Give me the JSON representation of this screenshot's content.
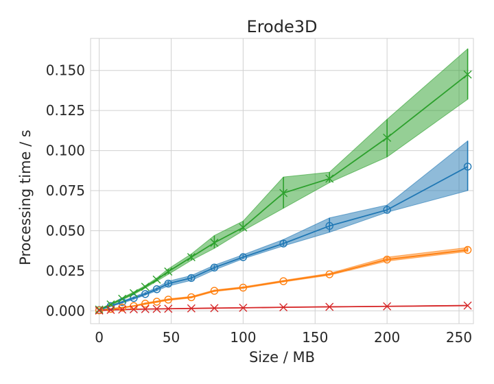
{
  "chart_data": {
    "type": "line",
    "title": "Erode3D",
    "xlabel": "Size / MB",
    "ylabel": "Processing time / s",
    "xlim": [
      -6,
      260
    ],
    "ylim": [
      -0.008,
      0.17
    ],
    "xticks": [
      0,
      50,
      100,
      150,
      200,
      250
    ],
    "xtick_labels": [
      "0",
      "50",
      "100",
      "150",
      "200",
      "250"
    ],
    "yticks": [
      0.0,
      0.025,
      0.05,
      0.075,
      0.1,
      0.125,
      0.15
    ],
    "ytick_labels": [
      "0.000",
      "0.025",
      "0.050",
      "0.075",
      "0.100",
      "0.125",
      "0.150"
    ],
    "grid": true,
    "x": [
      0,
      8,
      16,
      24,
      32,
      40,
      48,
      64,
      80,
      100,
      128,
      160,
      200,
      256
    ],
    "series": [
      {
        "color": "#1f77b4",
        "marker": "circle",
        "values": [
          0.0005,
          0.003,
          0.0055,
          0.008,
          0.0105,
          0.0135,
          0.017,
          0.0205,
          0.027,
          0.0335,
          0.042,
          0.053,
          0.063,
          0.09
        ],
        "lower": [
          0.0004,
          0.0027,
          0.0048,
          0.0072,
          0.0098,
          0.0125,
          0.0155,
          0.019,
          0.0255,
          0.0325,
          0.0405,
          0.049,
          0.0615,
          0.075
        ],
        "upper": [
          0.0006,
          0.0033,
          0.006,
          0.0088,
          0.0115,
          0.0145,
          0.0185,
          0.022,
          0.0285,
          0.035,
          0.0445,
          0.058,
          0.066,
          0.106
        ]
      },
      {
        "color": "#ff7f0e",
        "marker": "circle",
        "values": [
          0.0003,
          0.0012,
          0.002,
          0.003,
          0.0045,
          0.0057,
          0.007,
          0.0085,
          0.0125,
          0.0145,
          0.0185,
          0.0228,
          0.032,
          0.038
        ],
        "lower": [
          0.0002,
          0.001,
          0.0017,
          0.0027,
          0.004,
          0.0052,
          0.0065,
          0.008,
          0.012,
          0.014,
          0.018,
          0.0222,
          0.031,
          0.037
        ],
        "upper": [
          0.0004,
          0.0014,
          0.0023,
          0.0033,
          0.005,
          0.0062,
          0.0075,
          0.009,
          0.013,
          0.015,
          0.019,
          0.0234,
          0.0335,
          0.0395
        ]
      },
      {
        "color": "#2ca02c",
        "marker": "x",
        "values": [
          0.0008,
          0.004,
          0.0075,
          0.011,
          0.015,
          0.0195,
          0.0245,
          0.0335,
          0.0425,
          0.052,
          0.0735,
          0.0825,
          0.108,
          0.1475
        ],
        "lower": [
          0.0006,
          0.0035,
          0.0068,
          0.0102,
          0.0142,
          0.0185,
          0.0228,
          0.0315,
          0.039,
          0.05,
          0.064,
          0.08,
          0.096,
          0.132
        ],
        "upper": [
          0.001,
          0.0045,
          0.0082,
          0.0118,
          0.0158,
          0.0205,
          0.0262,
          0.0355,
          0.047,
          0.056,
          0.0835,
          0.0865,
          0.1195,
          0.1635
        ]
      },
      {
        "color": "#d62728",
        "marker": "x",
        "values": [
          0.0002,
          0.0006,
          0.0008,
          0.001,
          0.0011,
          0.0012,
          0.0013,
          0.0015,
          0.0017,
          0.0019,
          0.0022,
          0.0025,
          0.0028,
          0.0033
        ],
        "lower": [
          0.0001,
          0.0005,
          0.0007,
          0.0009,
          0.001,
          0.0011,
          0.0012,
          0.0014,
          0.0016,
          0.0018,
          0.0021,
          0.0024,
          0.0027,
          0.0031
        ],
        "upper": [
          0.0003,
          0.0007,
          0.0009,
          0.0011,
          0.0012,
          0.0013,
          0.0014,
          0.0016,
          0.0018,
          0.002,
          0.0023,
          0.0026,
          0.0029,
          0.0035
        ]
      }
    ]
  }
}
